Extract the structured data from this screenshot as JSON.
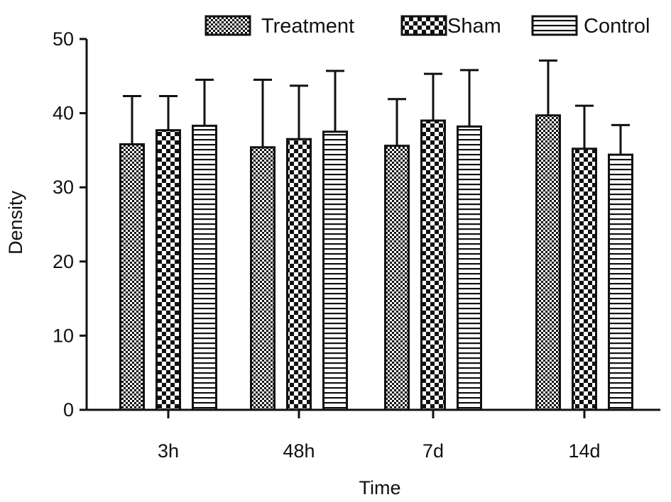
{
  "chart_data": {
    "type": "bar",
    "categories": [
      "3h",
      "48h",
      "7d",
      "14d"
    ],
    "series": [
      {
        "name": "Treatment",
        "pattern": "dots",
        "values": [
          35.8,
          35.4,
          35.6,
          39.7
        ],
        "errors": [
          6.5,
          9.1,
          6.3,
          7.4
        ]
      },
      {
        "name": "Sham",
        "pattern": "checker",
        "values": [
          37.7,
          36.5,
          39.0,
          35.2
        ],
        "errors": [
          4.6,
          7.2,
          6.3,
          5.8
        ]
      },
      {
        "name": "Control",
        "pattern": "hstripes",
        "values": [
          38.3,
          37.5,
          38.2,
          34.4
        ],
        "errors": [
          6.2,
          8.2,
          7.6,
          4.0
        ]
      }
    ],
    "xlabel": "Time",
    "ylabel": "Density",
    "ylim": [
      0,
      50
    ],
    "yticks": [
      0,
      10,
      20,
      30,
      40,
      50
    ],
    "legend_position": "top",
    "grid": false,
    "colors": {
      "ink": "#111111",
      "fill": "#ffffff"
    }
  }
}
